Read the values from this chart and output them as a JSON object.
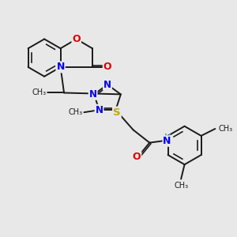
{
  "background_color": "#e8e8e8",
  "atom_colors": {
    "C": "#1a1a1a",
    "N": "#0000ee",
    "O": "#dd0000",
    "S": "#bbaa00",
    "H": "#4aafaf"
  },
  "bond_color": "#1a1a1a",
  "bond_width": 1.4,
  "figsize": [
    3.0,
    3.0
  ],
  "dpi": 100,
  "xlim": [
    0,
    10
  ],
  "ylim": [
    0,
    10
  ]
}
